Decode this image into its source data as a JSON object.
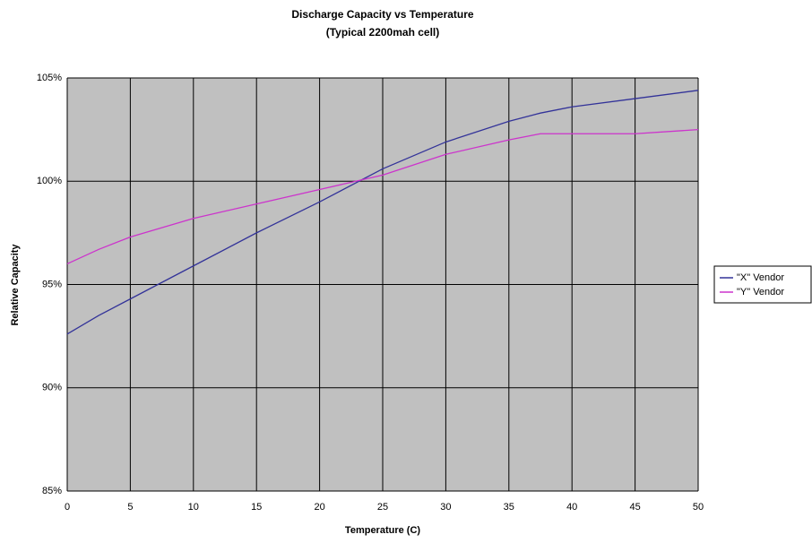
{
  "chart_data": {
    "type": "line",
    "title": "Discharge Capacity vs Temperature",
    "subtitle": "(Typical 2200mah cell)",
    "x_label": "Temperature (C)",
    "y_label": "Relative Capacity",
    "x": [
      0,
      2.5,
      5,
      10,
      15,
      20,
      25,
      30,
      35,
      37.5,
      40,
      45,
      50
    ],
    "series": [
      {
        "name": "\"X\" Vendor",
        "color": "#333399",
        "values": [
          92.6,
          93.5,
          94.3,
          95.9,
          97.5,
          99.0,
          100.6,
          101.9,
          102.9,
          103.3,
          103.6,
          104.0,
          104.4
        ]
      },
      {
        "name": "\"Y\" Vendor",
        "color": "#cc33cc",
        "values": [
          96.0,
          96.7,
          97.3,
          98.2,
          98.9,
          99.6,
          100.3,
          101.3,
          102.0,
          102.3,
          102.3,
          102.3,
          102.5
        ]
      }
    ],
    "xlim": [
      0,
      50
    ],
    "xticks": [
      0,
      5,
      10,
      15,
      20,
      25,
      30,
      35,
      40,
      45,
      50
    ],
    "ylim": [
      85,
      105
    ],
    "yticks": [
      {
        "value": 85,
        "label": "85%"
      },
      {
        "value": 90,
        "label": "90%"
      },
      {
        "value": 95,
        "label": "95%"
      },
      {
        "value": 100,
        "label": "100%"
      },
      {
        "value": 105,
        "label": "105%"
      }
    ],
    "grid": true,
    "legend": "right"
  }
}
